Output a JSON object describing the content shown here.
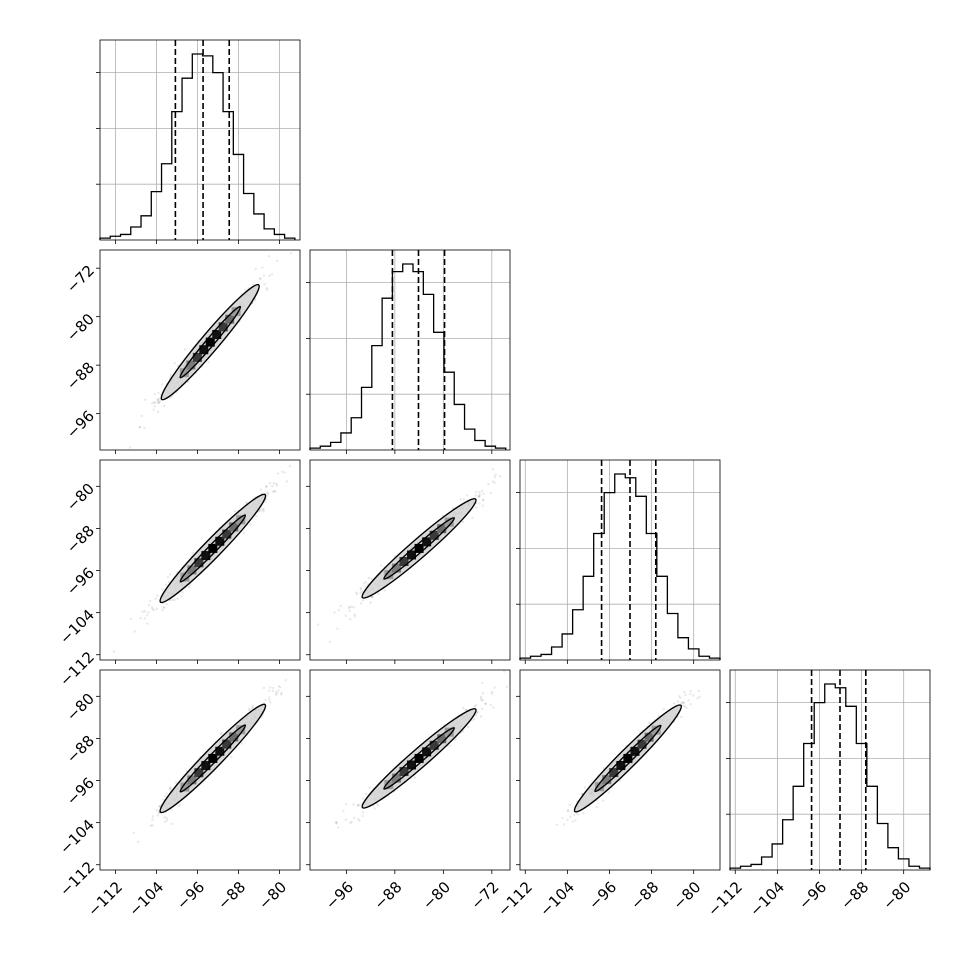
{
  "chart_data": {
    "type": "corner",
    "n_params": 4,
    "grid": true,
    "color": "#000000",
    "params": [
      {
        "range": [
          -115,
          -76
        ],
        "ticks": [
          -112,
          -104,
          -96,
          -88,
          -80
        ],
        "hist_bins": [
          -115,
          -113,
          -111,
          -109,
          -107,
          -105,
          -103,
          -101,
          -99,
          -97,
          -95,
          -93,
          -91,
          -89,
          -87,
          -85,
          -83,
          -81,
          -79,
          -77
        ],
        "hist_counts": [
          1,
          2,
          3,
          7,
          13,
          26,
          41,
          69,
          87,
          100,
          99,
          90,
          69,
          46,
          25,
          14,
          6,
          3,
          1
        ],
        "quantiles": [
          -100.3,
          -94.9,
          -89.8
        ]
      },
      {
        "range": [
          -102,
          -69
        ],
        "ticks": [
          -96,
          -88,
          -80,
          -72
        ],
        "hist_bins": [
          -102,
          -100.3,
          -98.6,
          -96.9,
          -95.2,
          -93.5,
          -91.8,
          -90.1,
          -88.4,
          -86.7,
          -85,
          -83.3,
          -81.6,
          -79.9,
          -78.2,
          -76.5,
          -74.8,
          -73.1,
          -71.4,
          -69.7
        ],
        "hist_counts": [
          1,
          2,
          4,
          9,
          17,
          33,
          55,
          80,
          94,
          98,
          94,
          82,
          62,
          41,
          24,
          11,
          5,
          2,
          1
        ],
        "quantiles": [
          -88.4,
          -84.1,
          -79.8
        ]
      },
      {
        "range": [
          -113,
          -75
        ],
        "ticks": [
          -112,
          -104,
          -96,
          -88,
          -80
        ],
        "hist_bins": [
          -113,
          -111,
          -109,
          -107,
          -105,
          -103,
          -101,
          -99,
          -97,
          -95,
          -93,
          -91,
          -89,
          -87,
          -85,
          -83,
          -81,
          -79,
          -77,
          -75
        ],
        "hist_counts": [
          1,
          2,
          3,
          7,
          14,
          27,
          45,
          68,
          90,
          100,
          98,
          88,
          68,
          45,
          25,
          12,
          6,
          2,
          1
        ],
        "quantiles": [
          -97.5,
          -92.1,
          -87.2
        ]
      },
      {
        "range": [
          -113,
          -75
        ],
        "ticks": [
          -112,
          -104,
          -96,
          -88,
          -80
        ],
        "hist_bins": [
          -113,
          -111,
          -109,
          -107,
          -105,
          -103,
          -101,
          -99,
          -97,
          -95,
          -93,
          -91,
          -89,
          -87,
          -85,
          -83,
          -81,
          -79,
          -77,
          -75
        ],
        "hist_counts": [
          1,
          2,
          3,
          7,
          14,
          27,
          45,
          68,
          90,
          100,
          98,
          88,
          68,
          45,
          25,
          12,
          6,
          2,
          1
        ],
        "quantiles": [
          -97.5,
          -92.1,
          -87.2
        ]
      }
    ],
    "scatter_panels": [
      {
        "row": 1,
        "col": 0,
        "mean": [
          -93.5,
          -84.2
        ],
        "contour_axes": [
          18.5,
          1.1
        ]
      },
      {
        "row": 2,
        "col": 0,
        "mean": [
          -93.0,
          -91.8
        ],
        "contour_axes": [
          19.0,
          1.1
        ]
      },
      {
        "row": 2,
        "col": 1,
        "mean": [
          -84.0,
          -91.8
        ],
        "contour_axes": [
          14.0,
          1.1
        ]
      },
      {
        "row": 3,
        "col": 0,
        "mean": [
          -93.0,
          -91.8
        ],
        "contour_axes": [
          19.0,
          1.1
        ]
      },
      {
        "row": 3,
        "col": 1,
        "mean": [
          -84.0,
          -91.8
        ],
        "contour_axes": [
          14.0,
          1.1
        ]
      },
      {
        "row": 3,
        "col": 2,
        "mean": [
          -92.5,
          -91.8
        ],
        "contour_axes": [
          18.5,
          1.1
        ]
      }
    ]
  }
}
